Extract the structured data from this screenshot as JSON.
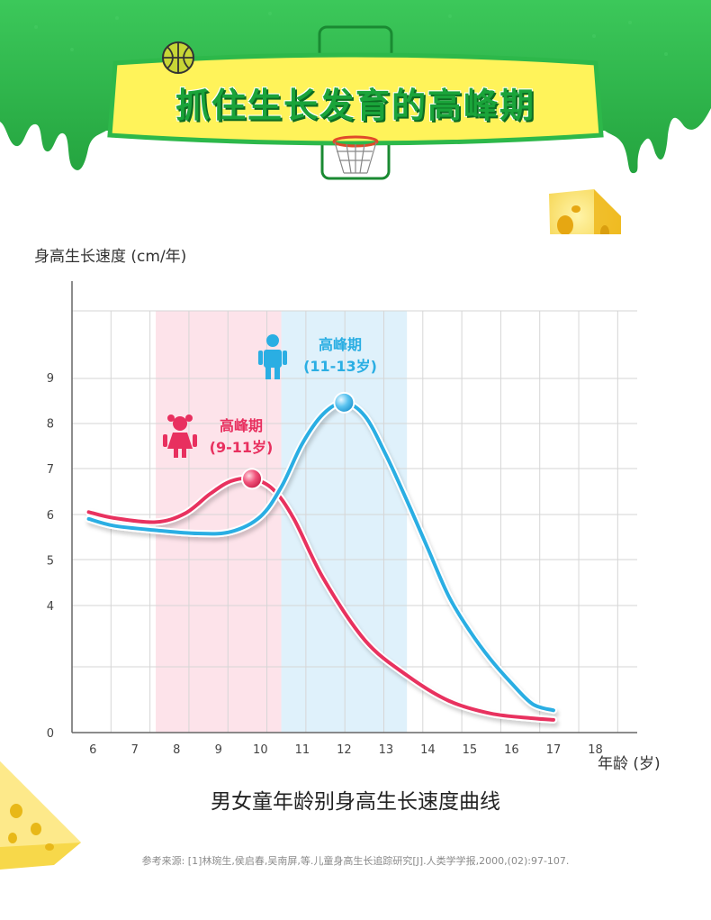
{
  "banner": {
    "title": "抓住生长发育的高峰期",
    "colors": {
      "slime": "#2db84a",
      "slime_dark": "#1f9a38",
      "plaque": "#fff35a",
      "plaque_border": "#2db84a"
    },
    "decorations": [
      "basketball-icon",
      "basketball-hoop-icon",
      "cheese-icon"
    ]
  },
  "chart_data": {
    "type": "line",
    "title": "男女童年龄别身高生长速度曲线",
    "xlabel": "年龄 (岁)",
    "ylabel": "身高生长速度 (cm/年)",
    "x_ticks": [
      6,
      7,
      8,
      9,
      10,
      11,
      12,
      13,
      14,
      15,
      16,
      17,
      18
    ],
    "y_ticks": [
      0,
      4,
      5,
      6,
      7,
      8,
      9
    ],
    "xlim": [
      5.5,
      19.0
    ],
    "y_axis_note": "broken axis: gap between 0 and 4",
    "grid": true,
    "series": [
      {
        "color": "#e8305f",
        "x": [
          5.9,
          6.5,
          7.5,
          8.2,
          8.8,
          9.3,
          9.8,
          10.3,
          10.8,
          11.5,
          12.5,
          13.5,
          14.5,
          15.5,
          16.5,
          17.0
        ],
        "y": [
          6.05,
          5.92,
          5.83,
          6.02,
          6.45,
          6.73,
          6.78,
          6.55,
          5.9,
          4.6,
          2.9,
          1.8,
          1.0,
          0.6,
          0.45,
          0.4
        ]
      },
      {
        "color": "#2aaee3",
        "x": [
          5.9,
          6.5,
          7.5,
          8.5,
          9.3,
          10.0,
          10.5,
          11.0,
          11.5,
          12.0,
          12.5,
          13.0,
          13.5,
          14.0,
          14.5,
          15.0,
          15.5,
          16.0,
          16.5,
          17.0
        ],
        "y": [
          5.9,
          5.75,
          5.65,
          5.58,
          5.62,
          5.95,
          6.6,
          7.55,
          8.2,
          8.45,
          8.15,
          7.3,
          6.3,
          5.25,
          4.2,
          3.2,
          2.3,
          1.55,
          0.9,
          0.7
        ]
      }
    ],
    "highlight_bands": [
      {
        "from": 7.5,
        "to": 10.5,
        "color": "#fde3ea"
      },
      {
        "from": 10.5,
        "to": 13.5,
        "color": "#dff1fb"
      }
    ],
    "annotations": [
      {
        "label": "高峰期",
        "range": "(9-11岁)",
        "peak_x": 9.8,
        "peak_y": 6.78,
        "color": "#e8305f",
        "icon": "girl-icon"
      },
      {
        "label": "高峰期",
        "range": "(11-13岁)",
        "peak_x": 12.0,
        "peak_y": 8.45,
        "color": "#2aaee3",
        "icon": "boy-icon"
      }
    ]
  },
  "source_note": "参考来源: [1]林琬生,侯启春,吴南屏,等.儿童身高生长追踪研究[J].人类学学报,2000,(02):97-107."
}
